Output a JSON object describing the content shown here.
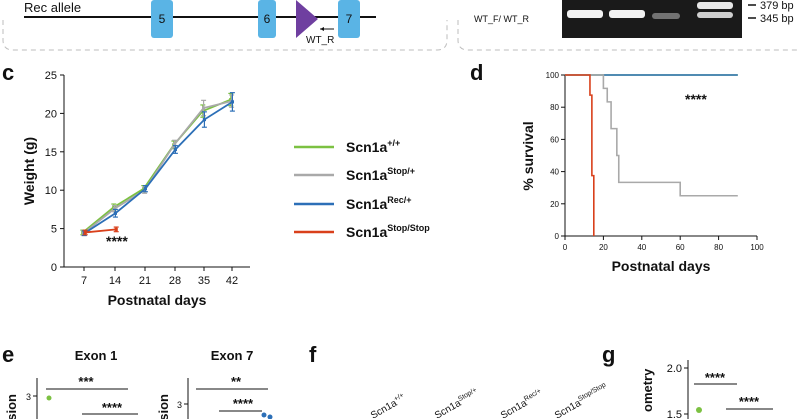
{
  "colors": {
    "wt": "#7cc142",
    "stop": "#a9a9a9",
    "rec": "#2c6fb7",
    "stopstop": "#d9401b",
    "exon": "#5ab4e5",
    "loxp": "#6f3fa0",
    "dashed_border": "#bdbdbd"
  },
  "top": {
    "rec_allele_label": "Rec allele",
    "exons": [
      "5",
      "6",
      "7"
    ],
    "primer_label": "WT_R",
    "gel_label": "WT_F/ WT_R",
    "band_large": "379 bp",
    "band_small": "345 bp"
  },
  "panels": {
    "c": "c",
    "d": "d",
    "e": "e",
    "f": "f",
    "g": "g"
  },
  "legend": {
    "items": [
      {
        "base": "Scn1a",
        "sup": "+/+",
        "color_key": "wt"
      },
      {
        "base": "Scn1a",
        "sup": "Stop/+",
        "color_key": "stop"
      },
      {
        "base": "Scn1a",
        "sup": "Rec/+",
        "color_key": "rec"
      },
      {
        "base": "Scn1a",
        "sup": "Stop/Stop",
        "color_key": "stopstop"
      }
    ]
  },
  "bottom": {
    "exon1_title": "Exon 1",
    "exon7_title": "Exon 7",
    "e_ylabel_partial": "ssion",
    "e_tick": "3",
    "e_sig": [
      "***",
      "****",
      "**",
      "****"
    ],
    "f_labels": [
      "+/+",
      "Stop/+",
      "Rec/+",
      "Stop/Stop"
    ],
    "g_ylabel_partial": "ometry",
    "g_ticks": [
      "2.0",
      "1.5"
    ],
    "g_sig": [
      "****",
      "****"
    ]
  },
  "chart_data": [
    {
      "type": "line",
      "panel": "c",
      "title": "",
      "xlabel": "Postnatal days",
      "ylabel": "Weight (g)",
      "x": [
        7,
        14,
        21,
        28,
        35,
        42
      ],
      "xticks": [
        "7",
        "14",
        "21",
        "28",
        "35",
        "42"
      ],
      "yticks": [
        "0",
        "5",
        "10",
        "15",
        "20",
        "25"
      ],
      "ylim": [
        0,
        25
      ],
      "series": [
        {
          "name": "Scn1a+/+",
          "color_key": "wt",
          "values": [
            4.5,
            7.8,
            10.2,
            15.9,
            20.3,
            21.8
          ],
          "err": [
            0.3,
            0.4,
            0.4,
            0.5,
            0.8,
            0.8
          ]
        },
        {
          "name": "Scn1aStop/+",
          "color_key": "stop",
          "values": [
            4.4,
            7.6,
            10.0,
            16.0,
            20.7,
            21.6
          ],
          "err": [
            0.3,
            0.4,
            0.4,
            0.5,
            1.0,
            0.8
          ]
        },
        {
          "name": "Scn1aRec/+",
          "color_key": "rec",
          "values": [
            4.4,
            7.0,
            10.2,
            15.3,
            19.2,
            21.5
          ],
          "err": [
            0.3,
            0.5,
            0.4,
            0.5,
            1.0,
            1.2
          ]
        },
        {
          "name": "Scn1aStop/Stop",
          "color_key": "stopstop",
          "values": [
            4.5,
            4.9,
            null,
            null,
            null,
            null
          ],
          "err": [
            0.3,
            0.3,
            0,
            0,
            0,
            0
          ]
        }
      ],
      "annotation": "****"
    },
    {
      "type": "line",
      "panel": "d",
      "title": "",
      "xlabel": "Postnatal days",
      "ylabel": "% survival",
      "xticks": [
        "0",
        "20",
        "40",
        "60",
        "80",
        "100"
      ],
      "yticks": [
        "0",
        "20",
        "40",
        "60",
        "80",
        "100"
      ],
      "xlim": [
        0,
        100
      ],
      "ylim": [
        0,
        100
      ],
      "series": [
        {
          "name": "Scn1a+/+",
          "color_key": "wt",
          "points": [
            [
              0,
              100
            ],
            [
              90,
              100
            ]
          ]
        },
        {
          "name": "Scn1aRec/+",
          "color_key": "rec",
          "points": [
            [
              0,
              100
            ],
            [
              90,
              100
            ]
          ]
        },
        {
          "name": "Scn1aStop/+",
          "color_key": "stop",
          "points": [
            [
              0,
              100
            ],
            [
              20,
              100
            ],
            [
              20,
              91.7
            ],
            [
              22,
              91.7
            ],
            [
              22,
              83.3
            ],
            [
              24,
              83.3
            ],
            [
              24,
              66.7
            ],
            [
              27,
              66.7
            ],
            [
              27,
              50
            ],
            [
              28,
              50
            ],
            [
              28,
              33.3
            ],
            [
              60,
              33.3
            ],
            [
              60,
              25
            ],
            [
              90,
              25
            ]
          ]
        },
        {
          "name": "Scn1aStop/Stop",
          "color_key": "stopstop",
          "points": [
            [
              0,
              100
            ],
            [
              13,
              100
            ],
            [
              13,
              87.5
            ],
            [
              14,
              87.5
            ],
            [
              14,
              37.5
            ],
            [
              15,
              37.5
            ],
            [
              15,
              0
            ]
          ]
        }
      ],
      "annotation": "****"
    }
  ]
}
